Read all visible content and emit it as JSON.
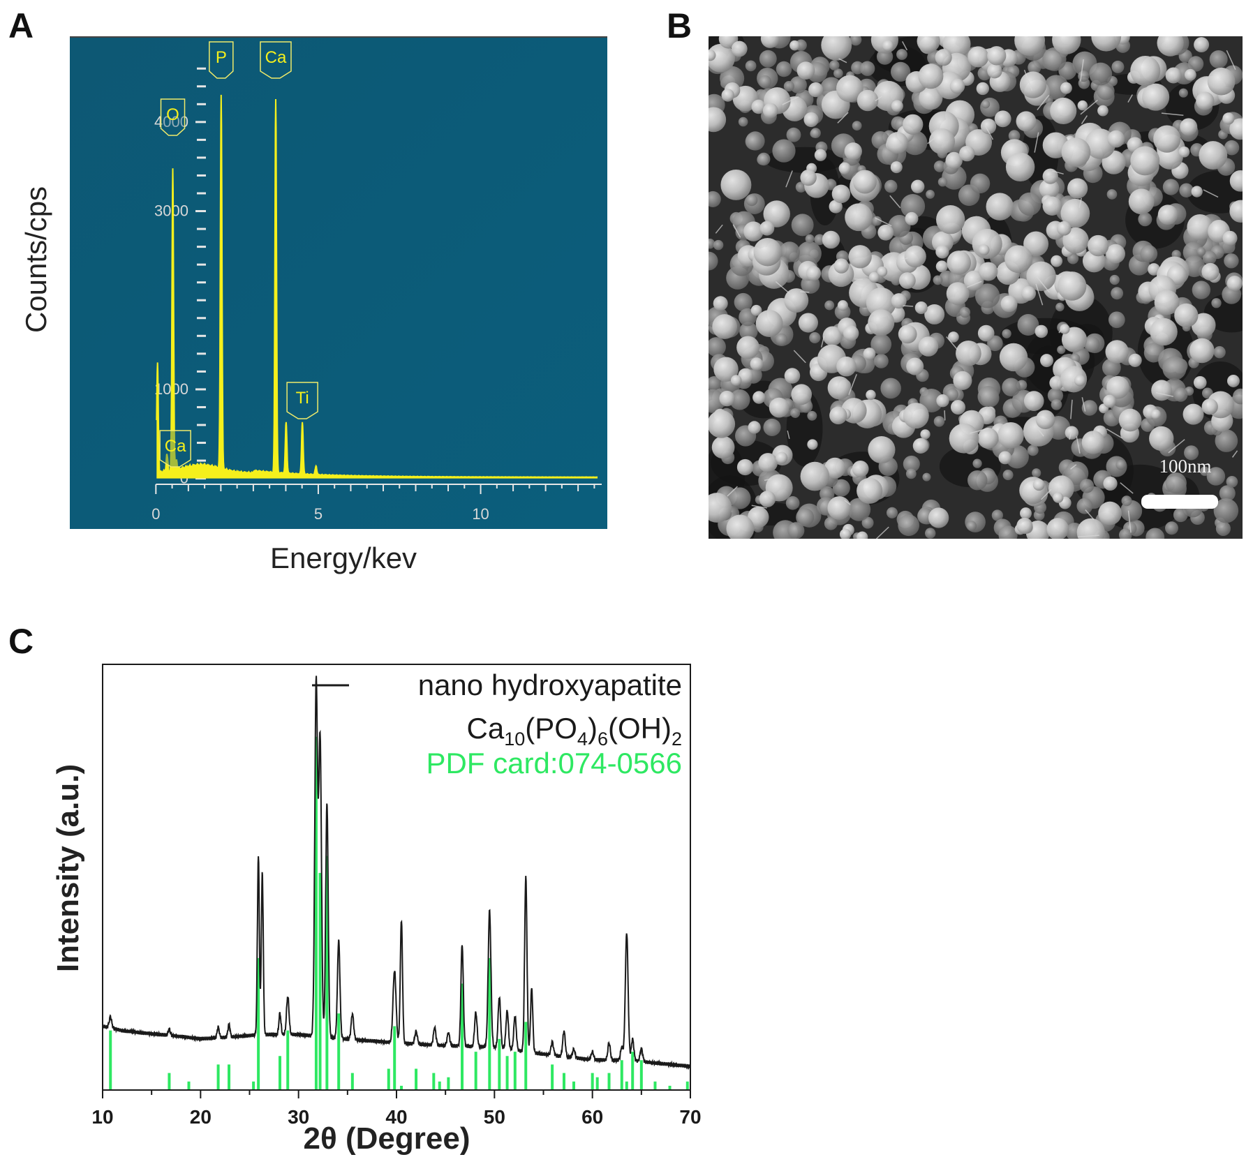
{
  "figure": {
    "panel_labels": {
      "a": "A",
      "b": "B",
      "c": "C"
    }
  },
  "colors": {
    "eds_background": "#0d5a78",
    "eds_spectrum": "#f5f01c",
    "xrd_pattern": "#1a1a1a",
    "reference_bars": "#2ee862",
    "sem_dark": "#2a2a2a",
    "sem_particle": "#d2d2d2"
  },
  "chart_data": [
    {
      "panel": "A",
      "type": "line",
      "xlabel": "Energy/kev",
      "ylabel": "Counts/cps",
      "xlim": [
        -0.05,
        13.9
      ],
      "ylim": [
        -50,
        4680
      ],
      "x_ticks": [
        0,
        5,
        10
      ],
      "y_ticks": [
        0,
        1000,
        3000,
        4000
      ],
      "grid": false,
      "peak_labels": [
        {
          "label": "O",
          "x": 0.52,
          "y": 3650
        },
        {
          "label": "P",
          "x": 2.01,
          "y": 4200
        },
        {
          "label": "Ca",
          "x": 3.69,
          "y": 4200
        },
        {
          "label": "Ti",
          "x": 4.51,
          "y": 610
        },
        {
          "label": "Ca",
          "x": 0.34,
          "y": 260
        }
      ],
      "peaks": [
        {
          "x": 0.05,
          "y": 1250
        },
        {
          "x": 0.34,
          "y": 200
        },
        {
          "x": 0.52,
          "y": 3400
        },
        {
          "x": 0.63,
          "y": 120
        },
        {
          "x": 2.01,
          "y": 4200
        },
        {
          "x": 3.69,
          "y": 4200
        },
        {
          "x": 4.01,
          "y": 580
        },
        {
          "x": 4.51,
          "y": 590
        },
        {
          "x": 4.93,
          "y": 100
        }
      ]
    },
    {
      "panel": "C",
      "type": "line",
      "xlabel": "2θ (Degree)",
      "ylabel": "Intensity (a.u.)",
      "xlim": [
        10,
        70
      ],
      "ylim": [
        0,
        100
      ],
      "x_ticks": [
        10,
        20,
        30,
        40,
        50,
        60,
        70
      ],
      "legend_position": "top-right",
      "legend": {
        "line_label": "nano hydroxyapatite",
        "formula": {
          "ca": "Ca",
          "ca_sub": "10",
          "po": "(PO",
          "po_sub": "4",
          "po_close": ")",
          "po_outer": "6",
          "oh": "(OH)",
          "oh_sub": "2"
        },
        "card_label": "PDF card:074-0566"
      },
      "series": [
        {
          "name": "nano hydroxyapatite",
          "baseline": [
            [
              10,
              15
            ],
            [
              12,
              14
            ],
            [
              20,
              12
            ],
            [
              26,
              13
            ],
            [
              30,
              13
            ],
            [
              35,
              12
            ],
            [
              40,
              11
            ],
            [
              50,
              10
            ],
            [
              60,
              7
            ],
            [
              64,
              7
            ],
            [
              70,
              5.5
            ]
          ],
          "peaks": [
            {
              "x": 10.8,
              "h": 2.5,
              "w": 0.18
            },
            {
              "x": 16.8,
              "h": 1.5,
              "w": 0.15
            },
            {
              "x": 21.8,
              "h": 2.5,
              "w": 0.15
            },
            {
              "x": 22.9,
              "h": 3,
              "w": 0.15
            },
            {
              "x": 25.9,
              "h": 42,
              "w": 0.14
            },
            {
              "x": 26.3,
              "h": 38,
              "w": 0.14
            },
            {
              "x": 28.1,
              "h": 5,
              "w": 0.15
            },
            {
              "x": 28.9,
              "h": 9,
              "w": 0.18
            },
            {
              "x": 31.8,
              "h": 83,
              "w": 0.2
            },
            {
              "x": 32.2,
              "h": 70,
              "w": 0.2
            },
            {
              "x": 32.9,
              "h": 55,
              "w": 0.18
            },
            {
              "x": 34.1,
              "h": 23,
              "w": 0.18
            },
            {
              "x": 35.5,
              "h": 6,
              "w": 0.18
            },
            {
              "x": 39.8,
              "h": 17,
              "w": 0.22
            },
            {
              "x": 40.5,
              "h": 29,
              "w": 0.16
            },
            {
              "x": 42.0,
              "h": 3,
              "w": 0.18
            },
            {
              "x": 43.9,
              "h": 4,
              "w": 0.18
            },
            {
              "x": 45.3,
              "h": 3,
              "w": 0.18
            },
            {
              "x": 46.7,
              "h": 24,
              "w": 0.17
            },
            {
              "x": 48.1,
              "h": 8,
              "w": 0.18
            },
            {
              "x": 49.5,
              "h": 32,
              "w": 0.2
            },
            {
              "x": 50.5,
              "h": 12,
              "w": 0.18
            },
            {
              "x": 51.3,
              "h": 9,
              "w": 0.18
            },
            {
              "x": 52.1,
              "h": 8,
              "w": 0.18
            },
            {
              "x": 53.2,
              "h": 41,
              "w": 0.17
            },
            {
              "x": 53.8,
              "h": 15,
              "w": 0.16
            },
            {
              "x": 55.9,
              "h": 3,
              "w": 0.18
            },
            {
              "x": 57.1,
              "h": 6,
              "w": 0.18
            },
            {
              "x": 58.1,
              "h": 2,
              "w": 0.18
            },
            {
              "x": 60.0,
              "h": 2,
              "w": 0.18
            },
            {
              "x": 61.7,
              "h": 4,
              "w": 0.18
            },
            {
              "x": 63.0,
              "h": 3,
              "w": 0.18
            },
            {
              "x": 63.5,
              "h": 30,
              "w": 0.2
            },
            {
              "x": 64.1,
              "h": 5,
              "w": 0.18
            },
            {
              "x": 65.0,
              "h": 3,
              "w": 0.18
            }
          ]
        },
        {
          "name": "PDF card:074-0566",
          "type": "stick",
          "sticks": [
            [
              10.8,
              14
            ],
            [
              16.8,
              4
            ],
            [
              18.8,
              2
            ],
            [
              21.8,
              6
            ],
            [
              22.9,
              6
            ],
            [
              25.4,
              2
            ],
            [
              25.9,
              31
            ],
            [
              28.1,
              8
            ],
            [
              28.9,
              14
            ],
            [
              31.8,
              83
            ],
            [
              32.2,
              51
            ],
            [
              32.9,
              55
            ],
            [
              34.1,
              18
            ],
            [
              35.5,
              4
            ],
            [
              39.2,
              5
            ],
            [
              39.8,
              15
            ],
            [
              40.5,
              1
            ],
            [
              42.0,
              5
            ],
            [
              43.8,
              4
            ],
            [
              44.4,
              2
            ],
            [
              45.3,
              3
            ],
            [
              46.7,
              25
            ],
            [
              48.1,
              9
            ],
            [
              49.5,
              31
            ],
            [
              50.5,
              12
            ],
            [
              51.3,
              8
            ],
            [
              52.1,
              9
            ],
            [
              53.2,
              16
            ],
            [
              55.9,
              6
            ],
            [
              57.1,
              4
            ],
            [
              58.1,
              2
            ],
            [
              60.0,
              4
            ],
            [
              60.5,
              3
            ],
            [
              61.7,
              4
            ],
            [
              63.0,
              7
            ],
            [
              63.5,
              2
            ],
            [
              64.1,
              9
            ],
            [
              65.0,
              7
            ],
            [
              66.4,
              2
            ],
            [
              67.9,
              1
            ],
            [
              69.7,
              2
            ]
          ]
        }
      ]
    }
  ],
  "sem_image": {
    "scale_bar_label": "100nm"
  }
}
